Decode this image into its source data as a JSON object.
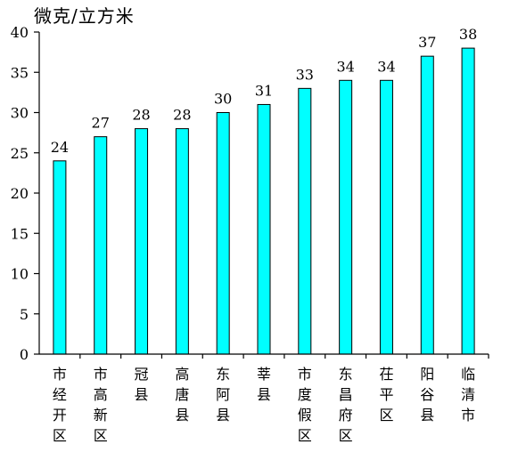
{
  "chart_data": {
    "type": "bar",
    "ylabel": "微克/立方米",
    "ylim": [
      0,
      40
    ],
    "yticks": [
      0,
      5,
      10,
      15,
      20,
      25,
      30,
      35,
      40
    ],
    "categories": [
      "市经开区",
      "市高新区",
      "冠县",
      "高唐县",
      "东阿县",
      "莘县",
      "市度假区",
      "东昌府区",
      "茌平区",
      "阳谷县",
      "临清市"
    ],
    "values": [
      24,
      27,
      28,
      28,
      30,
      31,
      33,
      34,
      34,
      37,
      38
    ],
    "bar_color": "#00FFFF",
    "grid": false,
    "legend": "none"
  }
}
